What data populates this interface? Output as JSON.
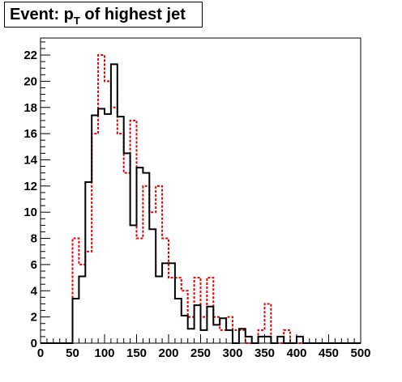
{
  "chart_data": {
    "type": "histogram",
    "title": {
      "main": "Event: p",
      "subscript": "T",
      "rest": " of highest jet"
    },
    "xlabel": "",
    "ylabel": "",
    "xlim": [
      0,
      500
    ],
    "ylim": [
      0,
      23.3
    ],
    "grid": false,
    "bin_width": 10,
    "x_ticks": [
      0,
      50,
      100,
      150,
      200,
      250,
      300,
      350,
      400,
      450,
      500
    ],
    "y_ticks": [
      0,
      2,
      4,
      6,
      8,
      10,
      12,
      14,
      16,
      18,
      20,
      22
    ],
    "series": [
      {
        "color": "#000000",
        "style": "solid",
        "values": [
          0,
          0,
          0,
          0,
          0,
          3.4,
          5.1,
          12.3,
          17.4,
          17.9,
          17.5,
          21.3,
          17.3,
          14.5,
          9.0,
          13.4,
          13.0,
          8.7,
          5.1,
          6.1,
          6.1,
          3.4,
          2.1,
          1.1,
          2.9,
          1.0,
          2.8,
          1.4,
          1.9,
          1.0,
          0,
          1.1,
          0.5,
          0,
          0.5,
          0.5,
          0,
          0.5,
          0,
          0,
          0.5,
          0,
          0,
          0,
          0,
          0,
          0,
          0,
          0,
          0
        ]
      },
      {
        "color": "#e00000",
        "style": "dotted",
        "values": [
          0,
          0,
          0,
          0,
          0,
          8.0,
          6.0,
          7.0,
          16.0,
          22.0,
          20.0,
          18.0,
          16.0,
          13.0,
          17.0,
          8.0,
          12.0,
          10.0,
          12.0,
          8.0,
          5.0,
          5.0,
          4.0,
          2.0,
          5.0,
          2.0,
          5.0,
          2.0,
          1.0,
          2.0,
          1.0,
          1.0,
          0,
          0,
          1.0,
          3.0,
          0,
          0,
          1.0,
          0,
          0,
          0,
          0,
          0,
          0,
          0,
          0,
          0,
          0,
          0
        ]
      }
    ]
  }
}
